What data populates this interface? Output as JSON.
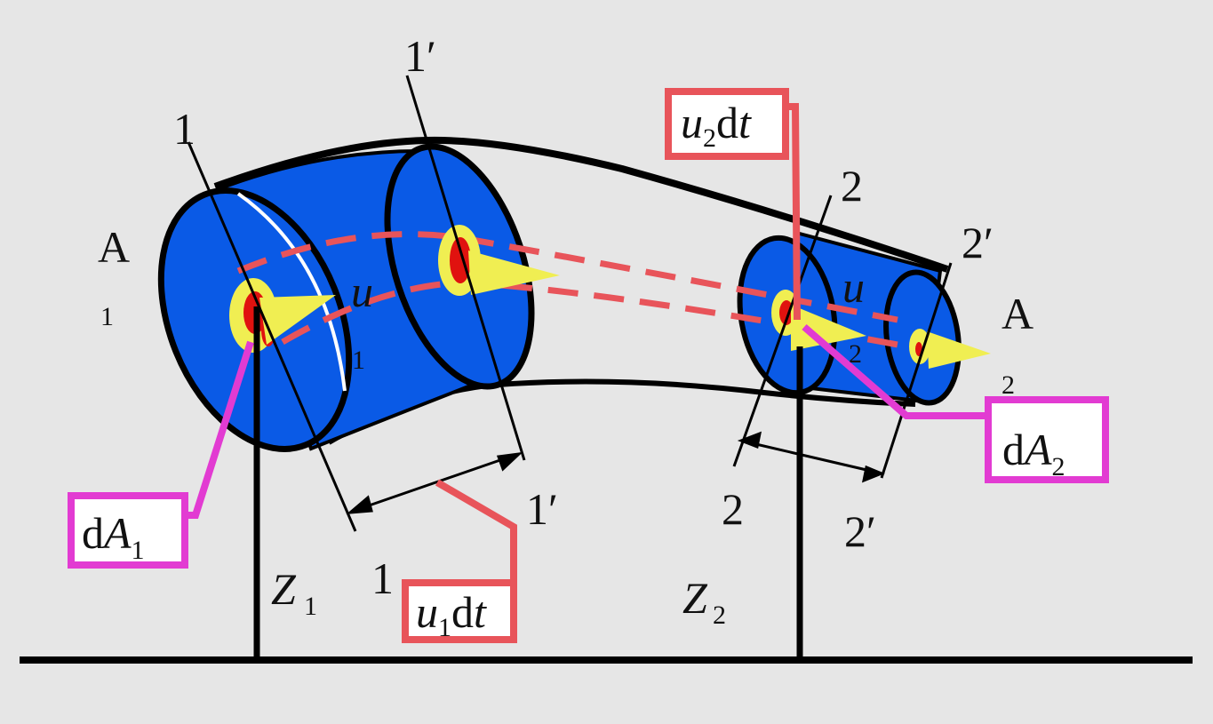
{
  "labels": {
    "section_1_top": "1",
    "section_1_bottom": "1",
    "section_1p_top": "1′",
    "section_1p_bottom": "1′",
    "section_2_top": "2",
    "section_2_bottom": "2",
    "section_2p_top": "2′",
    "section_2p_bottom": "2′",
    "area_1_letter": "A",
    "area_1_sub": "1",
    "area_2_letter": "A",
    "area_2_sub": "2",
    "velocity_1_letter": "u",
    "velocity_1_sub": "1",
    "velocity_2_letter": "u",
    "velocity_2_sub": "2",
    "z1_letter": "Z",
    "z1_sub": "1",
    "z2_letter": "Z",
    "z2_sub": "2"
  },
  "callouts": {
    "dA1": {
      "prefix": "d",
      "var": "A",
      "sub": "1"
    },
    "dA2": {
      "prefix": "d",
      "var": "A",
      "sub": "2"
    },
    "u1dt": {
      "var": "u",
      "sub": "1",
      "suffix": "d",
      "t": "t"
    },
    "u2dt": {
      "var": "u",
      "sub": "2",
      "suffix": "d",
      "t": "t"
    }
  },
  "colors": {
    "background": "#e6e6e6",
    "tube_fill": "#0a5ae6",
    "tube_outline": "#000000",
    "streamtube_dash": "#e8545a",
    "element_yellow": "#f0ee52",
    "element_red": "#e0120f",
    "callout_magenta": "#e23bd2",
    "callout_red": "#e8545a"
  },
  "icons": {
    "velocity_arrow": "yellow-arrow-icon"
  }
}
